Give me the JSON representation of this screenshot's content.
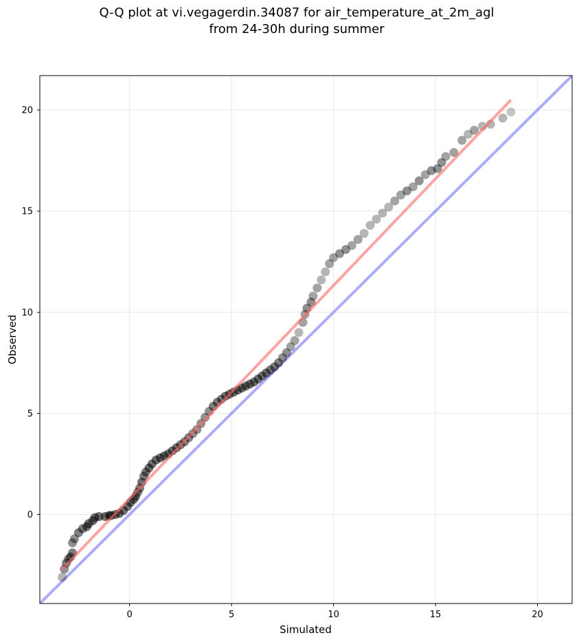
{
  "chart_data": {
    "type": "scatter",
    "title": "Q-Q plot at vi.vegagerdin.34087 for air_temperature_at_2m_agl",
    "subtitle": "from 24-30h during summer",
    "xlabel": "Simulated",
    "ylabel": "Observed",
    "xlim": [
      -4.4,
      21.7
    ],
    "ylim": [
      -4.4,
      21.7
    ],
    "xticks": [
      0,
      5,
      10,
      15,
      20
    ],
    "yticks": [
      0,
      5,
      10,
      15,
      20
    ],
    "grid": true,
    "quantile_points": [
      [
        -3.3,
        -3.1
      ],
      [
        -3.2,
        -2.7
      ],
      [
        -3.1,
        -2.4
      ],
      [
        -3.0,
        -2.2
      ],
      [
        -2.9,
        -2.1
      ],
      [
        -2.8,
        -1.9
      ],
      [
        -2.8,
        -1.4
      ],
      [
        -2.7,
        -1.2
      ],
      [
        -2.5,
        -0.9
      ],
      [
        -2.3,
        -0.7
      ],
      [
        -2.1,
        -0.6
      ],
      [
        -2.0,
        -0.45
      ],
      [
        -1.8,
        -0.3
      ],
      [
        -1.7,
        -0.15
      ],
      [
        -1.5,
        -0.1
      ],
      [
        -1.2,
        -0.1
      ],
      [
        -1.0,
        -0.05
      ],
      [
        -0.9,
        -0.05
      ],
      [
        -0.7,
        0.0
      ],
      [
        -0.5,
        0.05
      ],
      [
        -0.3,
        0.2
      ],
      [
        -0.1,
        0.4
      ],
      [
        0.05,
        0.6
      ],
      [
        0.2,
        0.75
      ],
      [
        0.3,
        0.9
      ],
      [
        0.4,
        1.1
      ],
      [
        0.5,
        1.3
      ],
      [
        0.6,
        1.6
      ],
      [
        0.7,
        1.9
      ],
      [
        0.8,
        2.1
      ],
      [
        0.95,
        2.3
      ],
      [
        1.1,
        2.5
      ],
      [
        1.3,
        2.7
      ],
      [
        1.5,
        2.8
      ],
      [
        1.7,
        2.9
      ],
      [
        1.9,
        3.0
      ],
      [
        2.1,
        3.15
      ],
      [
        2.3,
        3.3
      ],
      [
        2.5,
        3.45
      ],
      [
        2.7,
        3.6
      ],
      [
        2.9,
        3.8
      ],
      [
        3.1,
        4.0
      ],
      [
        3.3,
        4.2
      ],
      [
        3.5,
        4.5
      ],
      [
        3.7,
        4.8
      ],
      [
        3.9,
        5.1
      ],
      [
        4.1,
        5.35
      ],
      [
        4.3,
        5.55
      ],
      [
        4.5,
        5.7
      ],
      [
        4.7,
        5.85
      ],
      [
        4.9,
        5.95
      ],
      [
        5.1,
        6.05
      ],
      [
        5.3,
        6.15
      ],
      [
        5.5,
        6.25
      ],
      [
        5.7,
        6.35
      ],
      [
        5.9,
        6.45
      ],
      [
        6.1,
        6.55
      ],
      [
        6.3,
        6.7
      ],
      [
        6.5,
        6.85
      ],
      [
        6.7,
        7.0
      ],
      [
        6.9,
        7.15
      ],
      [
        7.1,
        7.3
      ],
      [
        7.3,
        7.5
      ],
      [
        7.5,
        7.75
      ],
      [
        7.7,
        8.0
      ],
      [
        7.9,
        8.3
      ],
      [
        8.1,
        8.6
      ],
      [
        8.3,
        9.0
      ],
      [
        8.5,
        9.5
      ],
      [
        8.6,
        9.9
      ],
      [
        8.7,
        10.2
      ],
      [
        8.9,
        10.5
      ],
      [
        9.0,
        10.8
      ],
      [
        9.2,
        11.2
      ],
      [
        9.4,
        11.6
      ],
      [
        9.6,
        12.0
      ],
      [
        9.8,
        12.4
      ],
      [
        10.0,
        12.7
      ],
      [
        10.3,
        12.9
      ],
      [
        10.6,
        13.1
      ],
      [
        10.9,
        13.3
      ],
      [
        11.2,
        13.6
      ],
      [
        11.5,
        13.9
      ],
      [
        11.8,
        14.3
      ],
      [
        12.1,
        14.6
      ],
      [
        12.4,
        14.9
      ],
      [
        12.7,
        15.2
      ],
      [
        13.0,
        15.5
      ],
      [
        13.3,
        15.8
      ],
      [
        13.6,
        16.0
      ],
      [
        13.9,
        16.2
      ],
      [
        14.2,
        16.5
      ],
      [
        14.5,
        16.8
      ],
      [
        14.8,
        17.0
      ],
      [
        15.1,
        17.1
      ],
      [
        15.3,
        17.4
      ],
      [
        15.5,
        17.7
      ],
      [
        15.9,
        17.9
      ],
      [
        16.3,
        18.5
      ],
      [
        16.6,
        18.8
      ],
      [
        16.9,
        19.0
      ],
      [
        17.3,
        19.2
      ],
      [
        17.7,
        19.3
      ],
      [
        18.3,
        19.6
      ],
      [
        18.7,
        19.9
      ]
    ],
    "fit_line": {
      "x": [
        -3.3,
        18.7
      ],
      "y": [
        -2.7,
        20.5
      ],
      "color": "#ff6666"
    },
    "identity_line": {
      "x": [
        -4.4,
        21.7
      ],
      "y": [
        -4.4,
        21.7
      ],
      "color": "#6666ff"
    },
    "point_color": "#000000"
  }
}
